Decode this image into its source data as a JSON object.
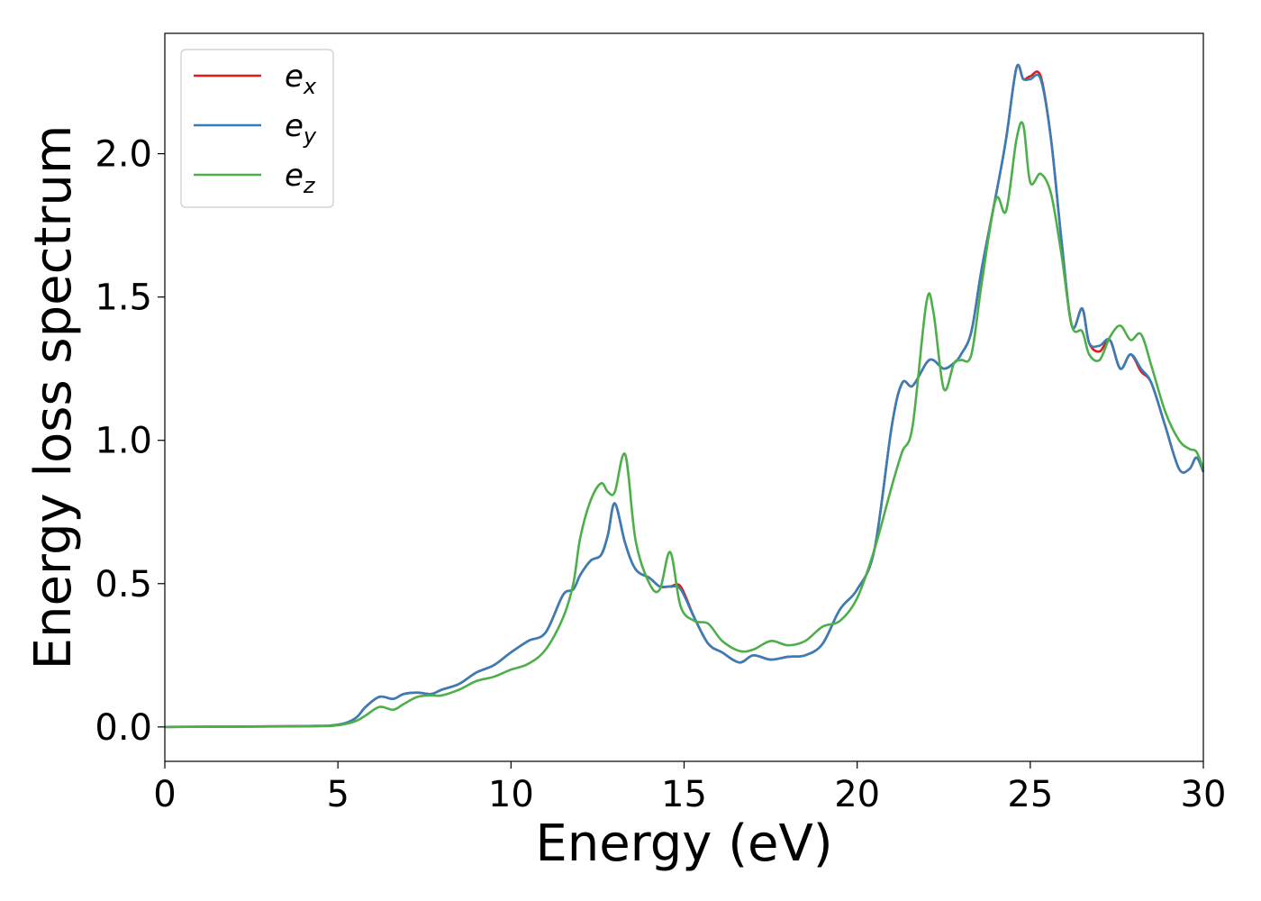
{
  "chart_data": {
    "type": "line",
    "title": "",
    "xlabel": "Energy (eV)",
    "ylabel": "Energy loss spectrum",
    "xlim": [
      0,
      30
    ],
    "ylim": [
      -0.12,
      2.42
    ],
    "xticks": [
      0,
      5,
      10,
      15,
      20,
      25,
      30
    ],
    "yticks": [
      0.0,
      0.5,
      1.0,
      1.5,
      2.0
    ],
    "xtick_labels": [
      "0",
      "5",
      "10",
      "15",
      "20",
      "25",
      "30"
    ],
    "ytick_labels": [
      "0.0",
      "0.5",
      "1.0",
      "1.5",
      "2.0"
    ],
    "grid": false,
    "legend_position": "top-left",
    "legend": [
      {
        "base": "e",
        "sub": "x",
        "color": "#e41a1c"
      },
      {
        "base": "e",
        "sub": "y",
        "color": "#377eb8"
      },
      {
        "base": "e",
        "sub": "z",
        "color": "#4daf4a"
      }
    ],
    "series": [
      {
        "name": "e_x",
        "color": "#e41a1c",
        "x": [
          0,
          4,
          5,
          5.5,
          5.8,
          6.2,
          6.6,
          6.9,
          7.3,
          7.7,
          8,
          8.5,
          9,
          9.5,
          10,
          10.5,
          11,
          11.5,
          11.8,
          12,
          12.3,
          12.6,
          12.8,
          13,
          13.3,
          13.6,
          14,
          14.3,
          14.6,
          14.9,
          15.3,
          15.7,
          16.1,
          16.6,
          17,
          17.5,
          18,
          18.5,
          19,
          19.5,
          20,
          20.5,
          21,
          21.3,
          21.6,
          22,
          22.2,
          22.5,
          22.8,
          23,
          23.3,
          23.6,
          24,
          24.3,
          24.6,
          24.8,
          25,
          25.3,
          25.6,
          25.9,
          26.2,
          26.5,
          26.7,
          27,
          27.3,
          27.6,
          27.9,
          28.2,
          28.5,
          28.9,
          29.3,
          29.6,
          29.8,
          30
        ],
        "y": [
          0,
          0.003,
          0.008,
          0.03,
          0.07,
          0.105,
          0.098,
          0.115,
          0.12,
          0.115,
          0.13,
          0.15,
          0.19,
          0.215,
          0.26,
          0.3,
          0.33,
          0.46,
          0.48,
          0.53,
          0.58,
          0.6,
          0.67,
          0.78,
          0.64,
          0.55,
          0.52,
          0.49,
          0.49,
          0.49,
          0.38,
          0.29,
          0.26,
          0.225,
          0.25,
          0.235,
          0.245,
          0.25,
          0.29,
          0.41,
          0.48,
          0.62,
          1.05,
          1.2,
          1.19,
          1.27,
          1.28,
          1.25,
          1.27,
          1.3,
          1.38,
          1.6,
          1.85,
          2.05,
          2.3,
          2.26,
          2.27,
          2.27,
          2.05,
          1.7,
          1.4,
          1.46,
          1.34,
          1.31,
          1.35,
          1.25,
          1.3,
          1.24,
          1.2,
          1.05,
          0.9,
          0.9,
          0.94,
          0.89
        ]
      },
      {
        "name": "e_y",
        "color": "#377eb8",
        "x": [
          0,
          4,
          5,
          5.5,
          5.8,
          6.2,
          6.6,
          6.9,
          7.3,
          7.7,
          8,
          8.5,
          9,
          9.5,
          10,
          10.5,
          11,
          11.5,
          11.8,
          12,
          12.3,
          12.6,
          12.8,
          13,
          13.3,
          13.6,
          14,
          14.3,
          14.6,
          14.9,
          15.3,
          15.7,
          16.1,
          16.6,
          17,
          17.5,
          18,
          18.5,
          19,
          19.5,
          20,
          20.5,
          21,
          21.3,
          21.6,
          22,
          22.2,
          22.5,
          22.8,
          23,
          23.3,
          23.6,
          24,
          24.3,
          24.6,
          24.8,
          25,
          25.3,
          25.6,
          25.9,
          26.2,
          26.5,
          26.7,
          27,
          27.3,
          27.6,
          27.9,
          28.2,
          28.5,
          28.9,
          29.3,
          29.6,
          29.8,
          30
        ],
        "y": [
          0,
          0.003,
          0.008,
          0.03,
          0.07,
          0.105,
          0.098,
          0.115,
          0.12,
          0.115,
          0.13,
          0.15,
          0.19,
          0.215,
          0.26,
          0.3,
          0.33,
          0.46,
          0.48,
          0.53,
          0.58,
          0.6,
          0.67,
          0.78,
          0.64,
          0.55,
          0.52,
          0.49,
          0.49,
          0.48,
          0.38,
          0.29,
          0.26,
          0.225,
          0.25,
          0.235,
          0.245,
          0.25,
          0.29,
          0.41,
          0.48,
          0.62,
          1.05,
          1.2,
          1.19,
          1.27,
          1.28,
          1.25,
          1.27,
          1.3,
          1.38,
          1.6,
          1.85,
          2.05,
          2.3,
          2.26,
          2.26,
          2.26,
          2.05,
          1.7,
          1.4,
          1.46,
          1.34,
          1.33,
          1.35,
          1.25,
          1.3,
          1.25,
          1.2,
          1.05,
          0.9,
          0.9,
          0.94,
          0.89
        ]
      },
      {
        "name": "e_z",
        "color": "#4daf4a",
        "x": [
          0,
          4,
          5,
          5.5,
          5.8,
          6.2,
          6.6,
          6.9,
          7.3,
          7.7,
          8,
          8.5,
          9,
          9.5,
          10,
          10.5,
          11,
          11.5,
          11.8,
          12,
          12.3,
          12.6,
          12.8,
          13,
          13.3,
          13.6,
          14,
          14.3,
          14.6,
          14.9,
          15.3,
          15.7,
          16.1,
          16.6,
          17,
          17.5,
          18,
          18.5,
          19,
          19.5,
          20,
          20.5,
          21,
          21.3,
          21.6,
          22,
          22.2,
          22.5,
          22.8,
          23,
          23.3,
          23.6,
          24,
          24.3,
          24.6,
          24.8,
          25,
          25.3,
          25.6,
          25.9,
          26.2,
          26.5,
          26.7,
          27,
          27.3,
          27.6,
          27.9,
          28.2,
          28.5,
          28.9,
          29.3,
          29.6,
          29.8,
          30
        ],
        "y": [
          0,
          0.002,
          0.006,
          0.02,
          0.04,
          0.07,
          0.06,
          0.08,
          0.105,
          0.11,
          0.11,
          0.13,
          0.16,
          0.175,
          0.2,
          0.22,
          0.27,
          0.38,
          0.5,
          0.66,
          0.79,
          0.85,
          0.82,
          0.82,
          0.95,
          0.65,
          0.5,
          0.48,
          0.61,
          0.42,
          0.37,
          0.36,
          0.3,
          0.265,
          0.27,
          0.3,
          0.285,
          0.3,
          0.35,
          0.37,
          0.45,
          0.62,
          0.84,
          0.96,
          1.05,
          1.48,
          1.45,
          1.18,
          1.27,
          1.28,
          1.3,
          1.55,
          1.84,
          1.8,
          2.05,
          2.1,
          1.9,
          1.93,
          1.86,
          1.65,
          1.4,
          1.38,
          1.3,
          1.28,
          1.36,
          1.4,
          1.35,
          1.37,
          1.26,
          1.1,
          1.0,
          0.97,
          0.96,
          0.9
        ]
      }
    ]
  }
}
